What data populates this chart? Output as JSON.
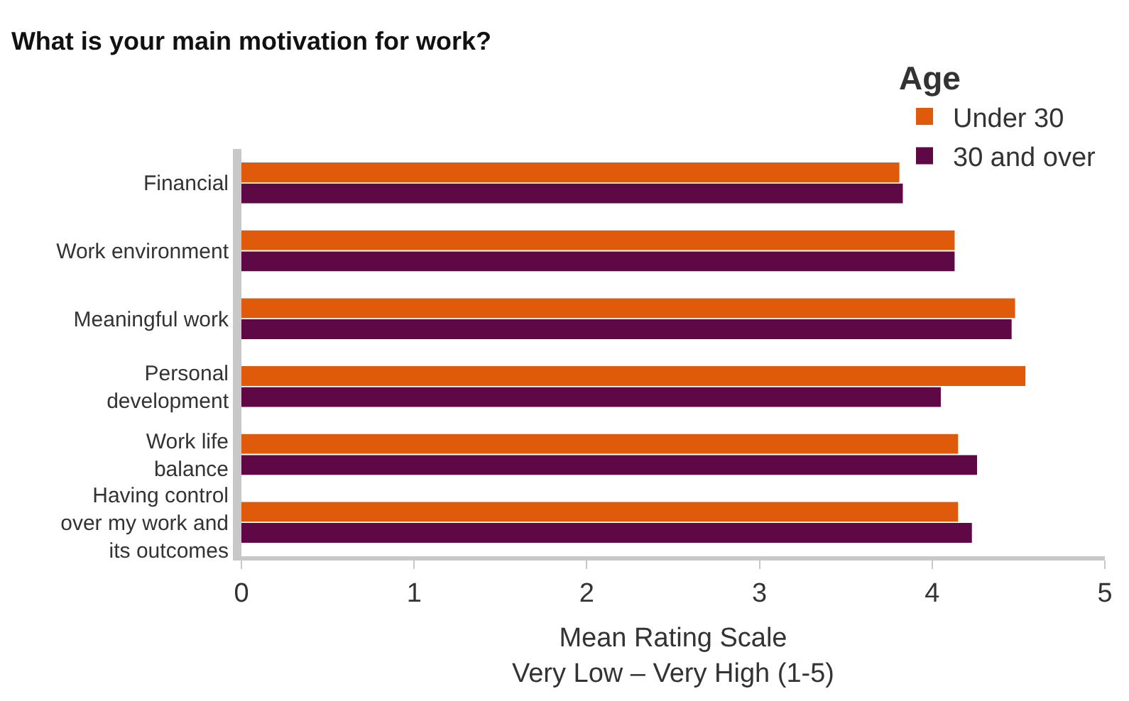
{
  "chart_data": {
    "type": "bar",
    "orientation": "horizontal",
    "title": "What is your main motivation for work?",
    "xlabel": "Mean Rating Scale\nVery Low – Very High (1-5)",
    "legend_title": "Age",
    "legend": "top right",
    "categories": [
      "Financial",
      "Work environment",
      "Meaningful work",
      "Personal development",
      "Work life balance",
      "Having control over my work and its outcomes"
    ],
    "series": [
      {
        "name": "Under 30",
        "color": "#e05a0c",
        "values": [
          3.81,
          4.13,
          4.48,
          4.54,
          4.15,
          4.15
        ]
      },
      {
        "name": "30 and over",
        "color": "#5e0845",
        "values": [
          3.83,
          4.13,
          4.46,
          4.05,
          4.26,
          4.23
        ]
      }
    ],
    "xlim": [
      0,
      5
    ],
    "xticks": [
      0,
      1,
      2,
      3,
      4,
      5
    ]
  }
}
